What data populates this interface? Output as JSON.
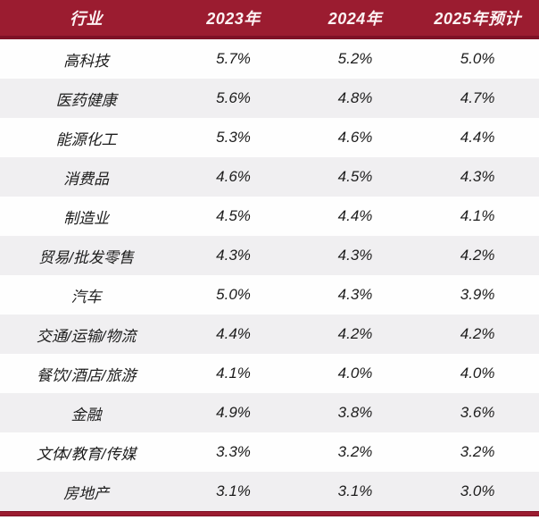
{
  "table": {
    "columns": [
      {
        "label": "行业"
      },
      {
        "label": "2023年"
      },
      {
        "label": "2024年"
      },
      {
        "label": "2025年预计"
      }
    ],
    "rows": [
      {
        "industry": "高科技",
        "y2023": "5.7%",
        "y2024": "5.2%",
        "y2025": "5.0%"
      },
      {
        "industry": "医药健康",
        "y2023": "5.6%",
        "y2024": "4.8%",
        "y2025": "4.7%"
      },
      {
        "industry": "能源化工",
        "y2023": "5.3%",
        "y2024": "4.6%",
        "y2025": "4.4%"
      },
      {
        "industry": "消费品",
        "y2023": "4.6%",
        "y2024": "4.5%",
        "y2025": "4.3%"
      },
      {
        "industry": "制造业",
        "y2023": "4.5%",
        "y2024": "4.4%",
        "y2025": "4.1%"
      },
      {
        "industry": "贸易/批发零售",
        "y2023": "4.3%",
        "y2024": "4.3%",
        "y2025": "4.2%"
      },
      {
        "industry": "汽车",
        "y2023": "5.0%",
        "y2024": "4.3%",
        "y2025": "3.9%"
      },
      {
        "industry": "交通/运输/物流",
        "y2023": "4.4%",
        "y2024": "4.2%",
        "y2025": "4.2%"
      },
      {
        "industry": "餐饮/酒店/旅游",
        "y2023": "4.1%",
        "y2024": "4.0%",
        "y2025": "4.0%"
      },
      {
        "industry": "金融",
        "y2023": "4.9%",
        "y2024": "3.8%",
        "y2025": "3.6%"
      },
      {
        "industry": "文体/教育/传媒",
        "y2023": "3.3%",
        "y2024": "3.2%",
        "y2025": "3.2%"
      },
      {
        "industry": "房地产",
        "y2023": "3.1%",
        "y2024": "3.1%",
        "y2025": "3.0%"
      }
    ]
  },
  "colors": {
    "header_bg": "#9B1C30",
    "header_border": "#7E1126",
    "header_text": "#FDF3F4",
    "row_alt_bg": "#F0EFF1",
    "row_bg": "#FEFEFE",
    "body_text": "#1C1C1C",
    "accent_bar": "#9B1C30"
  },
  "chart_data": {
    "type": "table",
    "title": "",
    "first_column_header": "行业",
    "categories": [
      "高科技",
      "医药健康",
      "能源化工",
      "消费品",
      "制造业",
      "贸易/批发零售",
      "汽车",
      "交通/运输/物流",
      "餐饮/酒店/旅游",
      "金融",
      "文体/教育/传媒",
      "房地产"
    ],
    "series": [
      {
        "name": "2023年",
        "values": [
          5.7,
          5.6,
          5.3,
          4.6,
          4.5,
          4.3,
          5.0,
          4.4,
          4.1,
          4.9,
          3.3,
          3.1
        ]
      },
      {
        "name": "2024年",
        "values": [
          5.2,
          4.8,
          4.6,
          4.5,
          4.4,
          4.3,
          4.3,
          4.2,
          4.0,
          3.8,
          3.2,
          3.1
        ]
      },
      {
        "name": "2025年预计",
        "values": [
          5.0,
          4.7,
          4.4,
          4.3,
          4.1,
          4.2,
          3.9,
          4.2,
          4.0,
          3.6,
          3.2,
          3.0
        ]
      }
    ],
    "unit": "%",
    "layout": {
      "alternating_row_shading": true,
      "header_style": "dark-red",
      "values_italic": true
    }
  }
}
